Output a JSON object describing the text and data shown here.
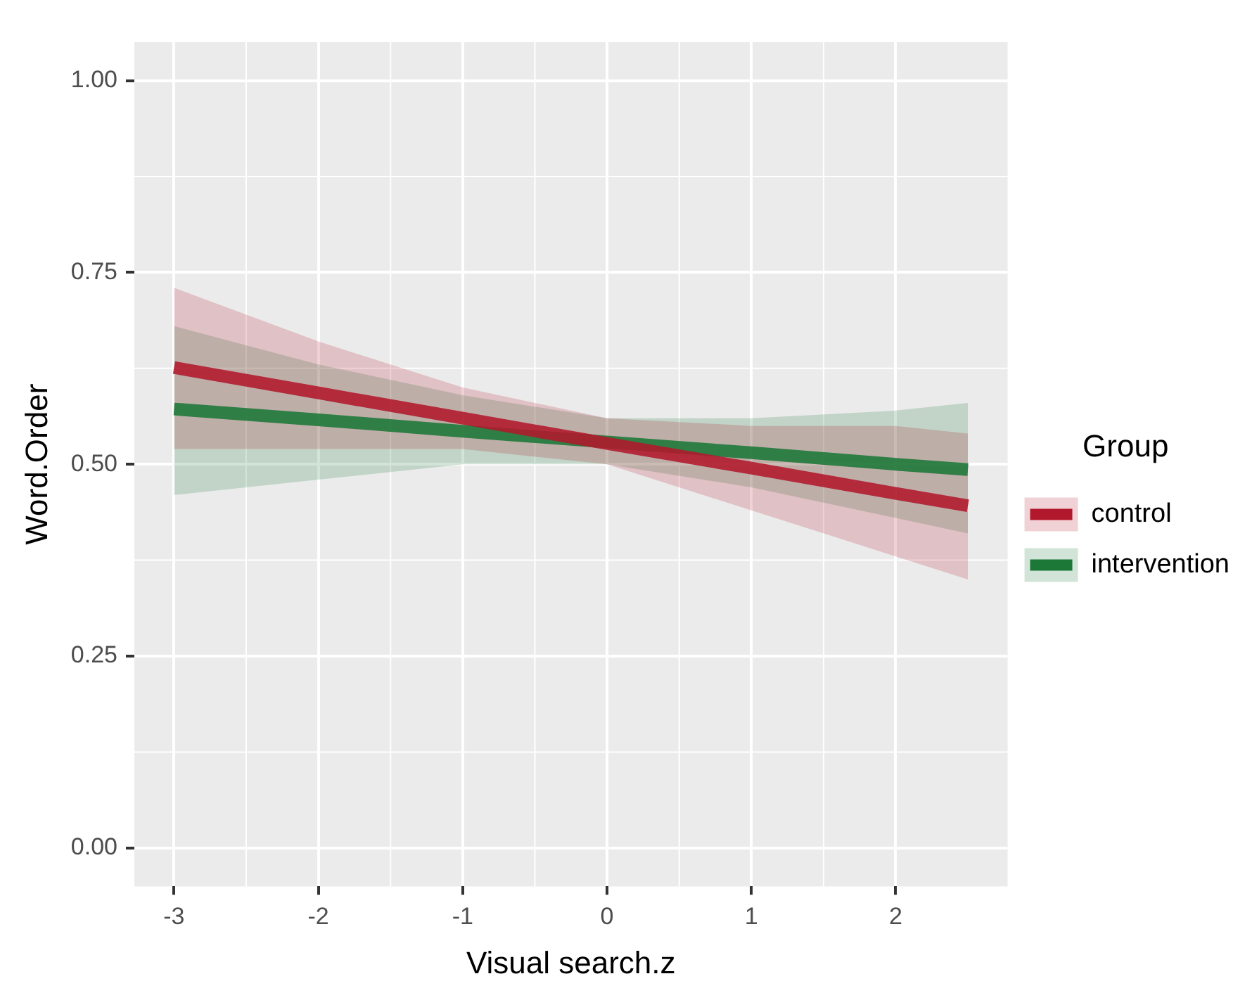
{
  "chart_data": {
    "type": "line",
    "xlabel": "Visual search.z",
    "ylabel": "Word.Order",
    "legend_title": "Group",
    "x": [
      -3,
      -2,
      -1,
      0,
      1,
      2,
      2.5
    ],
    "series": [
      {
        "name": "control",
        "color": "#b2182b",
        "values": [
          0.626,
          0.593,
          0.56,
          0.527,
          0.495,
          0.462,
          0.446
        ],
        "lower": [
          0.52,
          0.52,
          0.52,
          0.5,
          0.44,
          0.38,
          0.35
        ],
        "upper": [
          0.73,
          0.66,
          0.6,
          0.56,
          0.55,
          0.55,
          0.54
        ]
      },
      {
        "name": "intervention",
        "color": "#1b7837",
        "values": [
          0.572,
          0.558,
          0.543,
          0.529,
          0.515,
          0.5,
          0.493
        ],
        "lower": [
          0.46,
          0.48,
          0.5,
          0.5,
          0.47,
          0.43,
          0.41
        ],
        "upper": [
          0.68,
          0.63,
          0.59,
          0.56,
          0.56,
          0.57,
          0.58
        ]
      }
    ],
    "xlim": [
      -3.275,
      2.775
    ],
    "xticks": [
      -3,
      -2,
      -1,
      0,
      1,
      2
    ],
    "ylim": [
      -0.05,
      1.05
    ],
    "yticks": [
      {
        "value": 0,
        "label": "0.00"
      },
      {
        "value": 0.25,
        "label": "0.25"
      },
      {
        "value": 0.5,
        "label": "0.50"
      },
      {
        "value": 0.75,
        "label": "0.75"
      },
      {
        "value": 1,
        "label": "1.00"
      }
    ],
    "grid": true,
    "legend": "right",
    "marker": "none",
    "line_style": "solid"
  }
}
